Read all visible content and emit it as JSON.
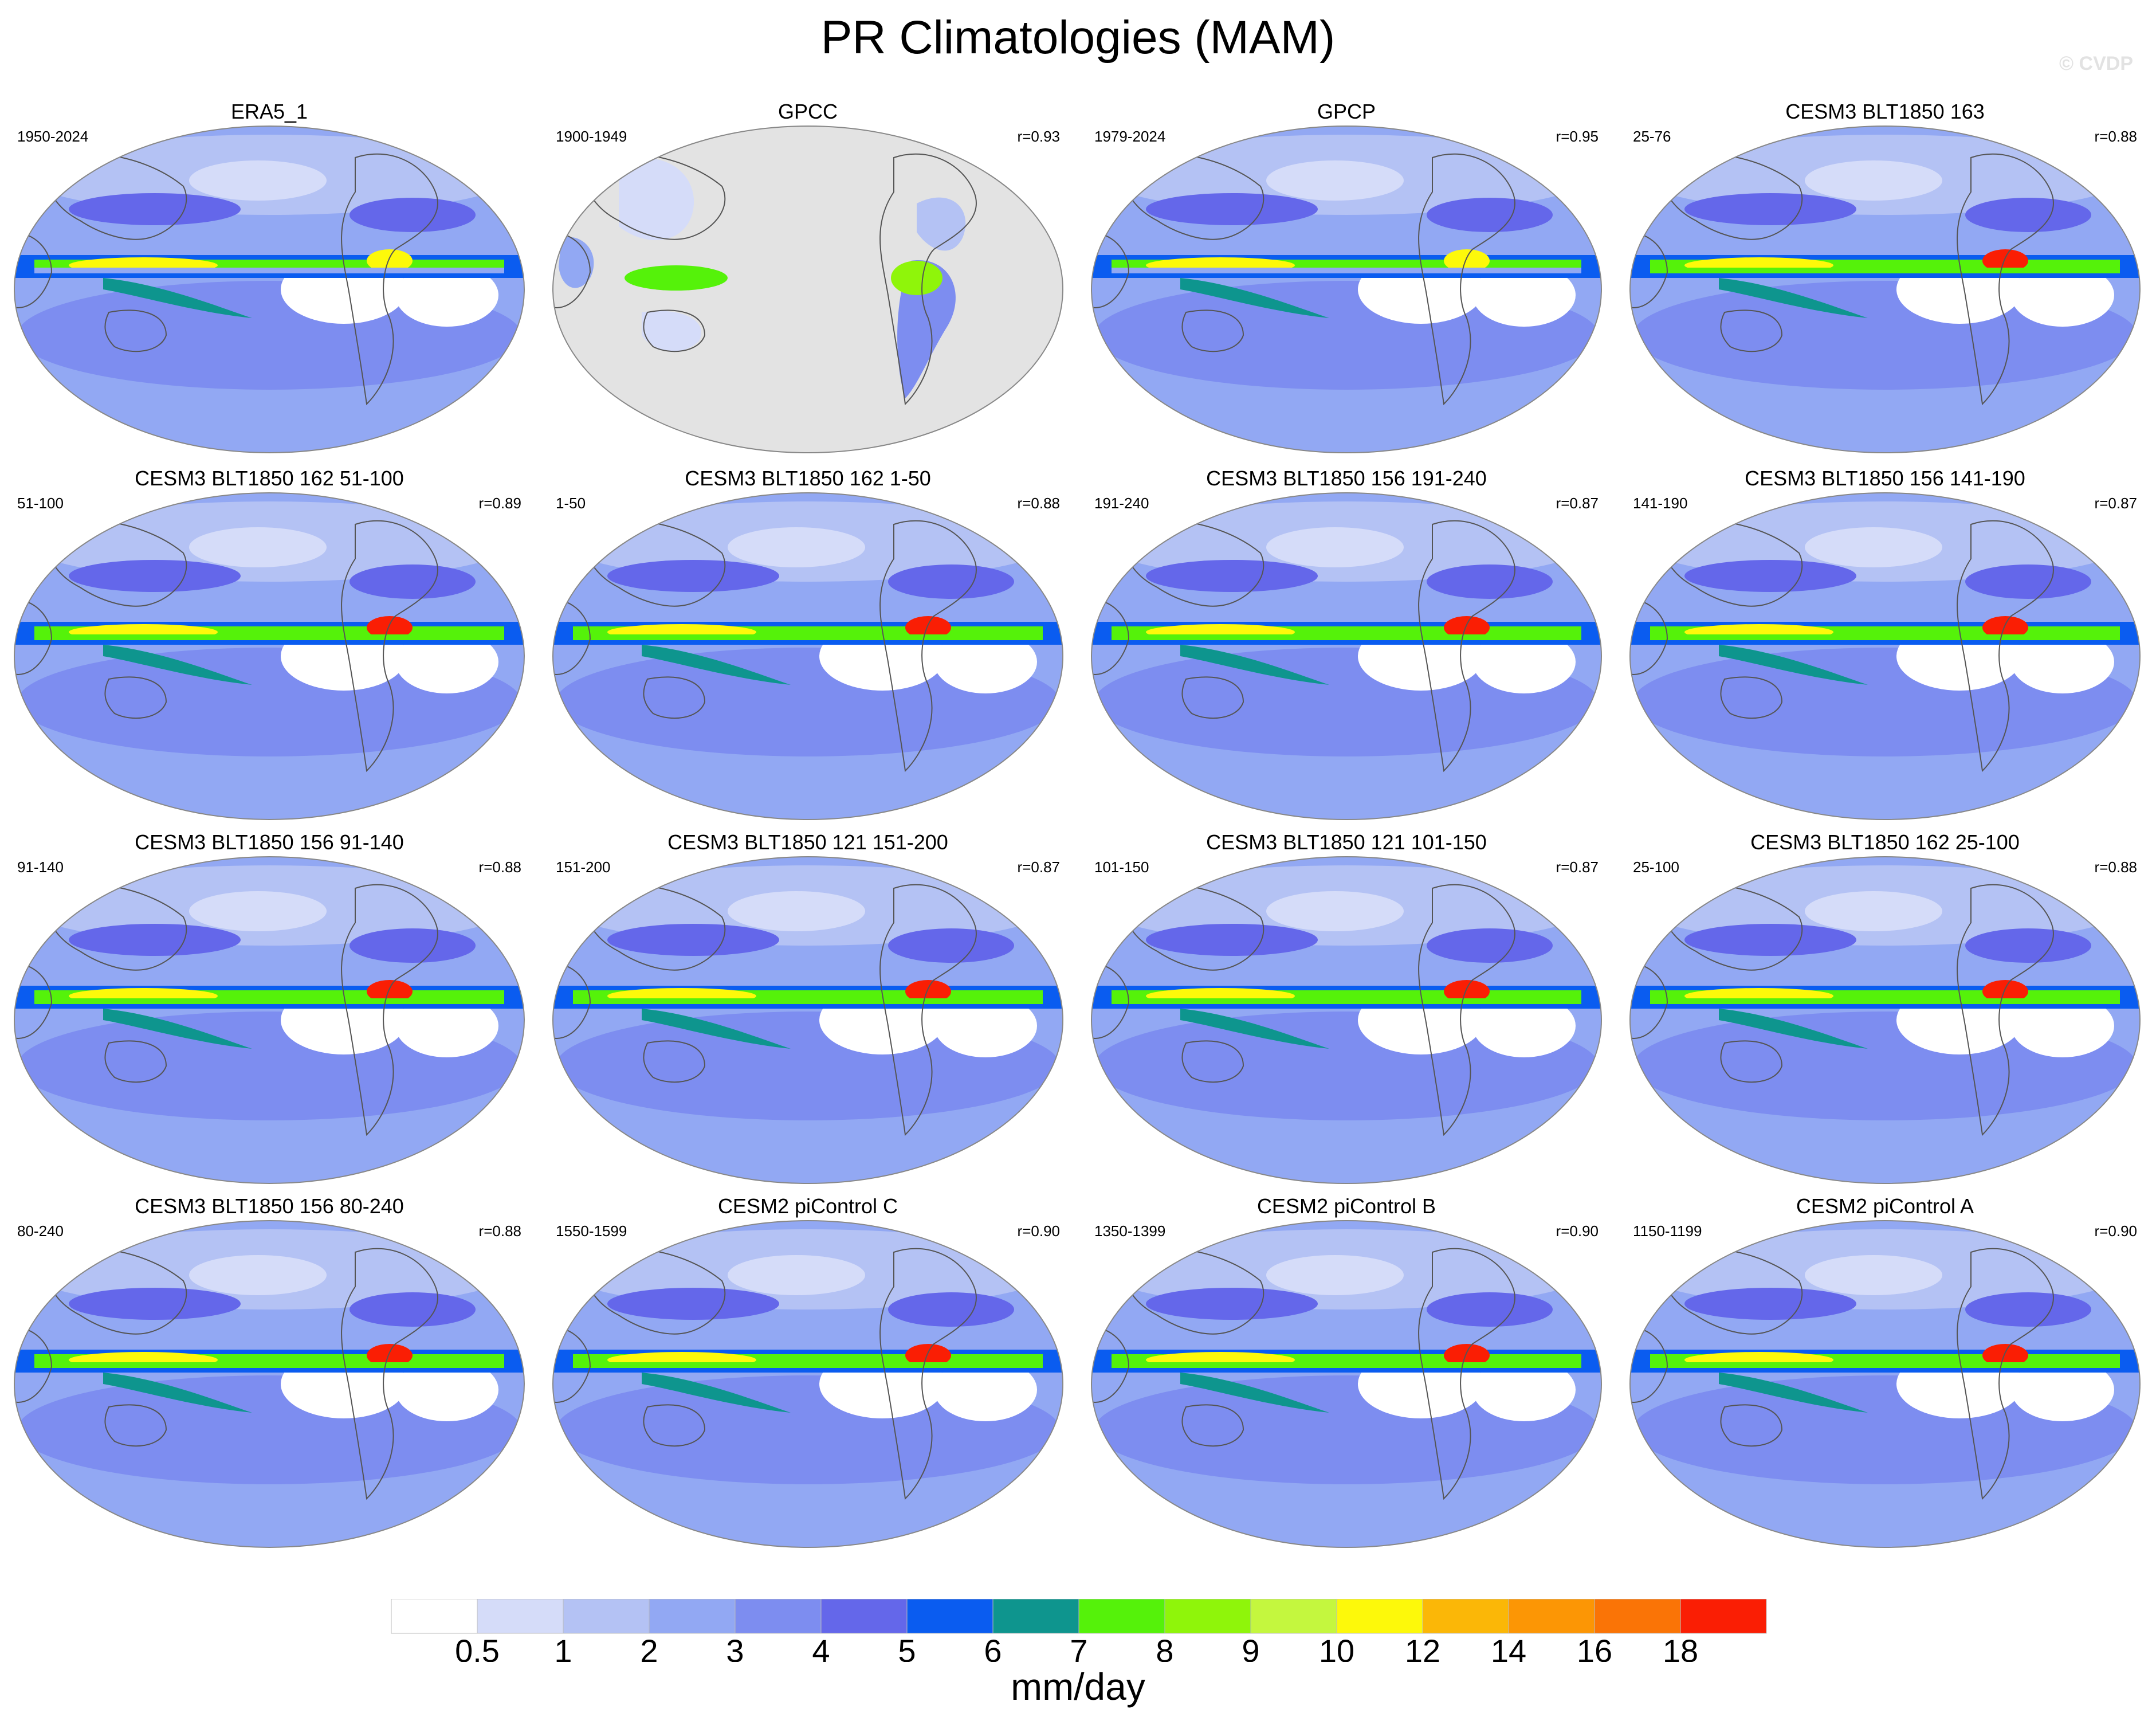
{
  "title": "PR Climatologies (MAM)",
  "watermark": "© CVDP",
  "panels": [
    {
      "title": "ERA5_1",
      "period": "1950-2024",
      "r": "",
      "kind": "obs"
    },
    {
      "title": "GPCC",
      "period": "1900-1949",
      "r": "r=0.93",
      "kind": "gpcc"
    },
    {
      "title": "GPCP",
      "period": "1979-2024",
      "r": "r=0.95",
      "kind": "obs"
    },
    {
      "title": "CESM3 BLT1850 163",
      "period": "25-76",
      "r": "r=0.88",
      "kind": "model"
    },
    {
      "title": "CESM3 BLT1850 162 51-100",
      "period": "51-100",
      "r": "r=0.89",
      "kind": "model"
    },
    {
      "title": "CESM3 BLT1850 162 1-50",
      "period": "1-50",
      "r": "r=0.88",
      "kind": "model"
    },
    {
      "title": "CESM3 BLT1850 156 191-240",
      "period": "191-240",
      "r": "r=0.87",
      "kind": "model"
    },
    {
      "title": "CESM3 BLT1850 156 141-190",
      "period": "141-190",
      "r": "r=0.87",
      "kind": "model"
    },
    {
      "title": "CESM3 BLT1850 156 91-140",
      "period": "91-140",
      "r": "r=0.88",
      "kind": "model"
    },
    {
      "title": "CESM3 BLT1850 121 151-200",
      "period": "151-200",
      "r": "r=0.87",
      "kind": "model"
    },
    {
      "title": "CESM3 BLT1850 121 101-150",
      "period": "101-150",
      "r": "r=0.87",
      "kind": "model"
    },
    {
      "title": "CESM3 BLT1850 162 25-100",
      "period": "25-100",
      "r": "r=0.88",
      "kind": "model"
    },
    {
      "title": "CESM3 BLT1850 156 80-240",
      "period": "80-240",
      "r": "r=0.88",
      "kind": "model"
    },
    {
      "title": "CESM2 piControl C",
      "period": "1550-1599",
      "r": "r=0.90",
      "kind": "cesm2"
    },
    {
      "title": "CESM2 piControl B",
      "period": "1350-1399",
      "r": "r=0.90",
      "kind": "cesm2"
    },
    {
      "title": "CESM2 piControl A",
      "period": "1150-1199",
      "r": "r=0.90",
      "kind": "cesm2"
    }
  ],
  "colorbar": {
    "colors": [
      "#ffffff",
      "#d5dcf9",
      "#b4c2f4",
      "#92a8f3",
      "#7d8df0",
      "#6467ea",
      "#0a5cf0",
      "#0e958e",
      "#55f20a",
      "#8ff50a",
      "#c4f73e",
      "#fdf90a",
      "#fbb707",
      "#fc9605",
      "#fa7406",
      "#fa1e04"
    ],
    "labels": [
      "0.5",
      "1",
      "2",
      "3",
      "4",
      "5",
      "6",
      "7",
      "8",
      "9",
      "10",
      "12",
      "14",
      "16",
      "18"
    ],
    "unit": "mm/day"
  }
}
